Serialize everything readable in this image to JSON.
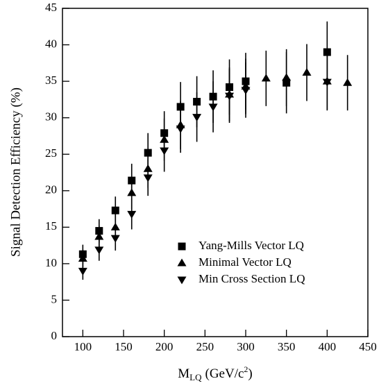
{
  "chart_data": {
    "type": "scatter",
    "x_label": [
      "M",
      "LQ",
      "(GeV/c",
      "2",
      ")"
    ],
    "y_label": "Signal Detection Efficiency (%)",
    "xlim": [
      75,
      450
    ],
    "xticks": [
      100,
      150,
      200,
      250,
      300,
      350,
      400,
      450
    ],
    "ylim": [
      0,
      45
    ],
    "yticks": [
      0,
      5,
      10,
      15,
      20,
      25,
      30,
      35,
      40,
      45
    ],
    "legend": "lower right",
    "series": [
      {
        "name": "Yang-Mills Vector LQ",
        "marker": "square",
        "color": "#000000",
        "x": [
          100,
          120,
          140,
          160,
          180,
          200,
          220,
          240,
          260,
          280,
          300,
          350,
          400
        ],
        "values": [
          11.3,
          14.5,
          17.3,
          21.4,
          25.2,
          27.9,
          31.5,
          32.2,
          32.9,
          34.2,
          35.0,
          34.8,
          39.0
        ],
        "errors": [
          1.3,
          1.6,
          1.9,
          2.3,
          2.7,
          3.0,
          3.4,
          3.5,
          3.6,
          3.8,
          3.9,
          4.2,
          4.2
        ]
      },
      {
        "name": "Minimal Vector LQ",
        "marker": "triangle-up",
        "color": "#000000",
        "x": [
          100,
          120,
          140,
          160,
          180,
          200,
          220,
          280,
          300,
          325,
          350,
          375,
          400,
          425
        ],
        "values": [
          10.7,
          13.7,
          15.0,
          19.7,
          23.0,
          27.0,
          29.0,
          33.2,
          34.3,
          35.4,
          35.5,
          36.2,
          35.0,
          34.8
        ],
        "errors": [
          1.2,
          1.5,
          1.8,
          2.2,
          2.6,
          2.9,
          3.3,
          3.7,
          3.8,
          3.8,
          3.9,
          3.9,
          3.9,
          3.8
        ]
      },
      {
        "name": "Min Cross Section LQ",
        "marker": "triangle-down",
        "color": "#000000",
        "x": [
          100,
          120,
          140,
          160,
          180,
          200,
          220,
          240,
          260,
          280,
          300,
          400
        ],
        "values": [
          9.0,
          11.9,
          13.5,
          16.8,
          21.8,
          25.5,
          28.5,
          30.1,
          31.5,
          33.0,
          33.8,
          34.9
        ],
        "errors": [
          1.2,
          1.5,
          1.7,
          2.1,
          2.5,
          2.9,
          3.3,
          3.4,
          3.5,
          3.7,
          3.8,
          3.9
        ]
      }
    ]
  }
}
